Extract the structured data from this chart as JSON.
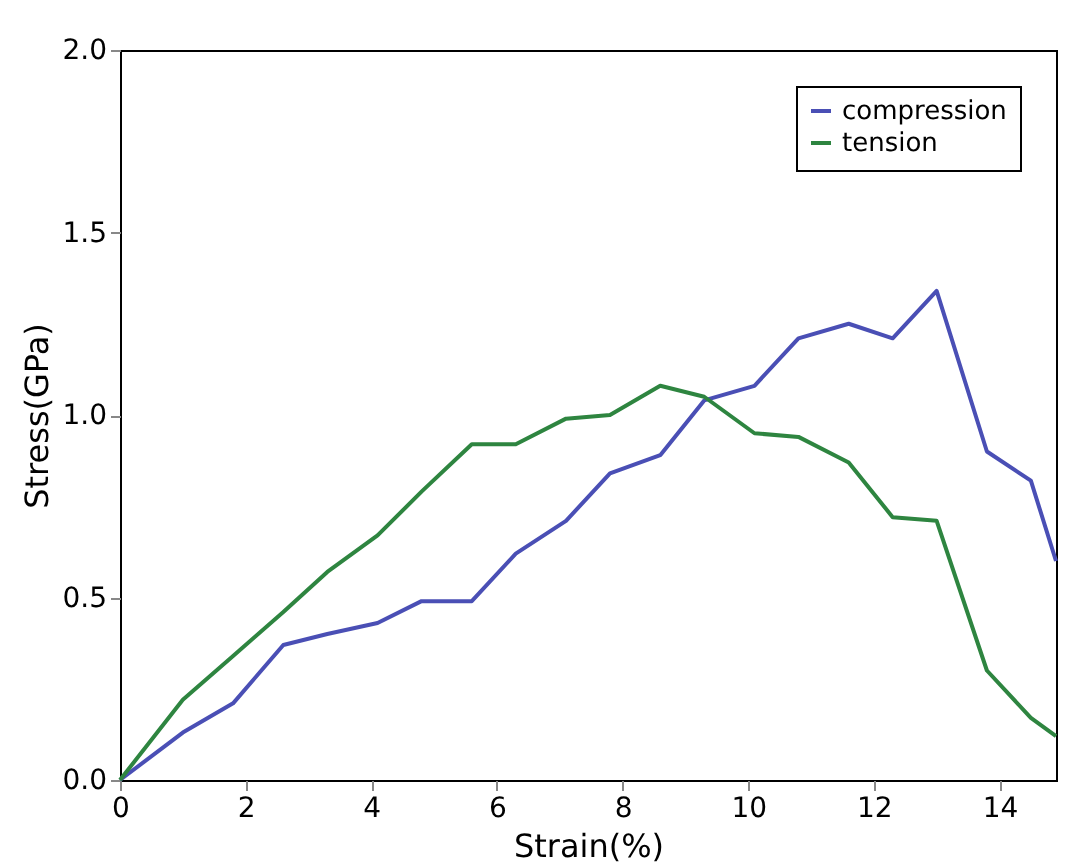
{
  "chart_data": {
    "type": "line",
    "xlabel": "Strain(%)",
    "ylabel": "Stress(GPa)",
    "x": [
      0,
      1.0,
      1.8,
      2.6,
      3.3,
      4.1,
      4.8,
      5.6,
      6.3,
      7.1,
      7.8,
      8.6,
      9.3,
      10.1,
      10.8,
      11.6,
      12.3,
      13.0,
      13.8,
      14.5,
      14.9
    ],
    "series": [
      {
        "name": "compression",
        "color": "#4a4fb5",
        "values": [
          0,
          0.13,
          0.21,
          0.37,
          0.4,
          0.43,
          0.49,
          0.49,
          0.62,
          0.71,
          0.84,
          0.89,
          1.04,
          1.08,
          1.21,
          1.25,
          1.21,
          1.34,
          0.9,
          0.82,
          0.6
        ]
      },
      {
        "name": "tension",
        "color": "#2e8540",
        "values": [
          0,
          0.22,
          0.34,
          0.46,
          0.57,
          0.67,
          0.79,
          0.92,
          0.92,
          0.99,
          1.0,
          1.08,
          1.05,
          0.95,
          0.94,
          0.87,
          0.72,
          0.71,
          0.3,
          0.17,
          0.12
        ]
      }
    ],
    "xlim": [
      0,
      14.9
    ],
    "xticks": [
      0,
      2,
      4,
      6,
      8,
      10,
      12,
      14
    ],
    "ylim": [
      0,
      2.0
    ],
    "yticks": [
      {
        "value": 0,
        "label": "0.0"
      },
      {
        "value": 0.5,
        "label": "0.5"
      },
      {
        "value": 1,
        "label": "1.0"
      },
      {
        "value": 1.5,
        "label": "1.5"
      },
      {
        "value": 2,
        "label": "2.0"
      }
    ],
    "grid": false,
    "legend": "top right",
    "line_style": "solid"
  }
}
